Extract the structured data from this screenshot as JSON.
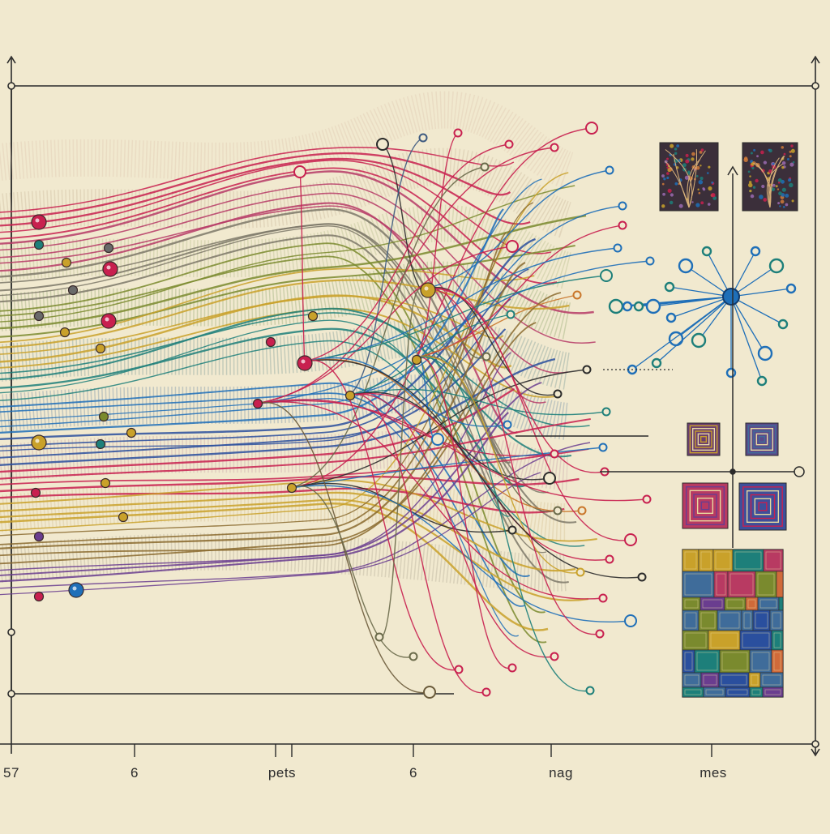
{
  "palette": {
    "paper": "#f1e9cf",
    "ink": "#2b2b2b",
    "crimson": "#c8204f",
    "blue": "#1f6fb8",
    "olive": "#7a8a2e",
    "gold": "#c9a12a",
    "teal": "#1d7f7a",
    "purple": "#6a3d8f",
    "grey": "#7c7868"
  },
  "axis_labels": [
    "57",
    "6",
    "pets",
    "6",
    "nag",
    "mes"
  ],
  "icons": {
    "top_arrow": "up-arrow-icon",
    "hub": "star-network-icon",
    "tree_tiles": "tree-texture-icon",
    "spiral_tiles": "square-spiral-icon",
    "mosaic": "patchwork-mosaic-icon"
  }
}
